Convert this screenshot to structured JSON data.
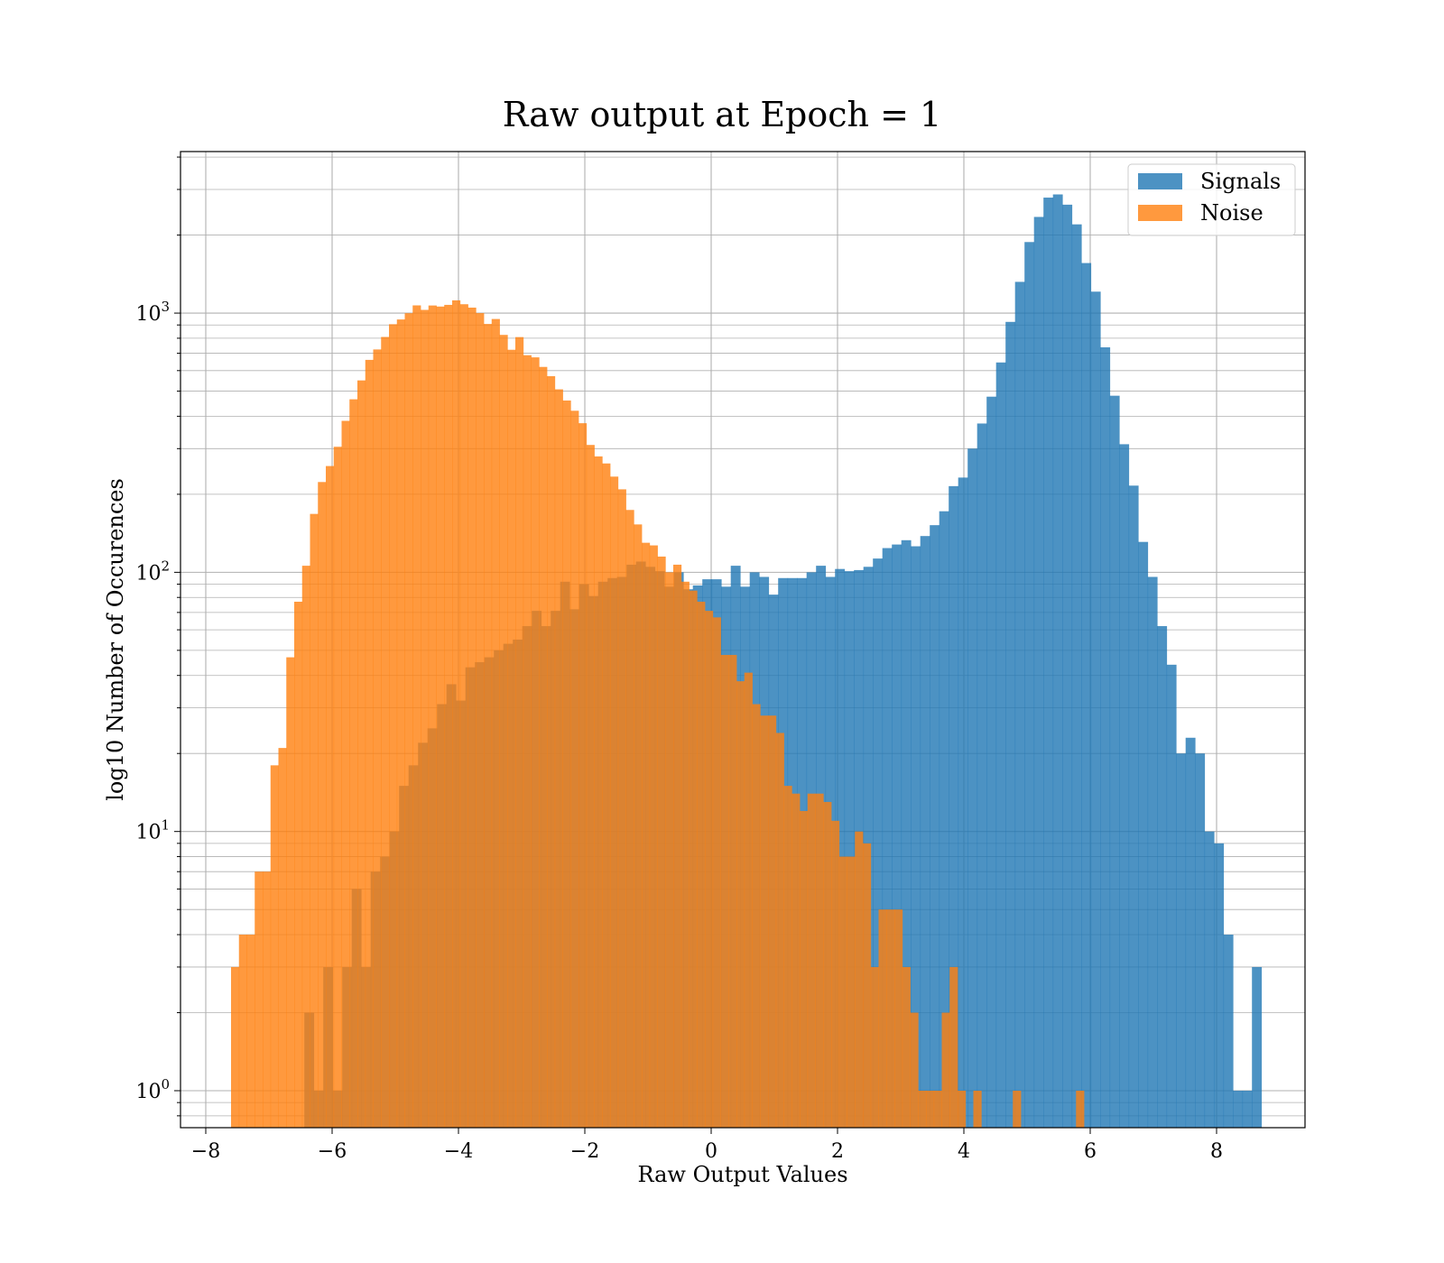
{
  "chart_data": {
    "type": "bar",
    "title": "Raw output at Epoch = 1",
    "xlabel": "Raw Output Values",
    "ylabel": "log10 Number of Occurences",
    "xlim": [
      -8.4,
      9.4
    ],
    "ylim": [
      0.72,
      4200
    ],
    "yscale": "log",
    "grid": true,
    "legend_position": "top-right",
    "x_ticks": [
      -8,
      -6,
      -4,
      -2,
      0,
      2,
      4,
      6,
      8
    ],
    "x_tick_labels": [
      "−8",
      "−6",
      "−4",
      "−2",
      "0",
      "2",
      "4",
      "6",
      "8"
    ],
    "y_ticks": [
      {
        "value": 1,
        "base": "10",
        "exp": "0"
      },
      {
        "value": 10,
        "base": "10",
        "exp": "1"
      },
      {
        "value": 100,
        "base": "10",
        "exp": "2"
      },
      {
        "value": 1000,
        "base": "10",
        "exp": "3"
      }
    ],
    "series": [
      {
        "name": "Signals",
        "color": "#1f77b4",
        "opacity": 0.8,
        "bin_start": -6.44,
        "bin_width": 0.15,
        "values": [
          2,
          1,
          3,
          1,
          3,
          6,
          3,
          7,
          8,
          10,
          15,
          18,
          22,
          25,
          31,
          37,
          32,
          43,
          45,
          47,
          50,
          53,
          55,
          62,
          71,
          62,
          71,
          92,
          72,
          90,
          81,
          92,
          95,
          96,
          107,
          110,
          105,
          101,
          88,
          100,
          86,
          89,
          94,
          94,
          88,
          106,
          88,
          100,
          96,
          82,
          95,
          95,
          95,
          100,
          106,
          96,
          103,
          101,
          102,
          105,
          113,
          124,
          128,
          133,
          126,
          138,
          152,
          172,
          215,
          232,
          300,
          375,
          476,
          645,
          925,
          1320,
          1880,
          2350,
          2790,
          2870,
          2620,
          2200,
          1560,
          1210,
          738,
          480,
          312,
          216,
          131,
          96,
          62,
          44,
          20,
          23,
          20,
          10,
          9,
          4,
          1,
          1,
          3
        ]
      },
      {
        "name": "Noise",
        "color": "#ff7f0e",
        "opacity": 0.8,
        "bin_start": -7.6,
        "bin_width": 0.125,
        "values": [
          3,
          4,
          4,
          7,
          7,
          18,
          21,
          47,
          77,
          106,
          168,
          223,
          257,
          305,
          384,
          465,
          550,
          660,
          724,
          809,
          906,
          945,
          999,
          1071,
          1029,
          1070,
          1060,
          1076,
          1120,
          1082,
          1050,
          1000,
          908,
          949,
          824,
          722,
          808,
          688,
          675,
          620,
          571,
          508,
          460,
          420,
          376,
          310,
          280,
          263,
          234,
          209,
          174,
          153,
          130,
          127,
          115,
          100,
          107,
          92,
          85,
          77,
          71,
          67,
          48,
          48,
          38,
          41,
          31,
          28,
          28,
          24,
          15,
          14,
          12,
          14,
          14,
          13,
          11,
          8,
          8,
          10,
          9,
          3,
          5,
          5,
          5,
          3,
          2,
          1,
          1,
          1,
          2,
          3,
          1,
          0,
          1,
          0,
          0,
          0,
          0,
          1,
          0,
          0,
          0,
          0,
          0,
          0,
          0,
          1
        ]
      }
    ]
  }
}
